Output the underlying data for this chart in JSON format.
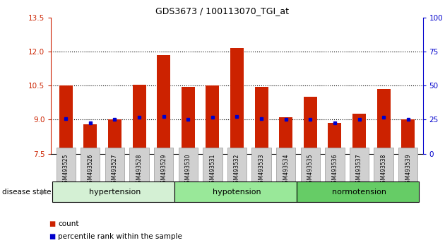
{
  "title": "GDS3673 / 100113070_TGI_at",
  "samples": [
    "GSM493525",
    "GSM493526",
    "GSM493527",
    "GSM493528",
    "GSM493529",
    "GSM493530",
    "GSM493531",
    "GSM493532",
    "GSM493533",
    "GSM493534",
    "GSM493535",
    "GSM493536",
    "GSM493537",
    "GSM493538",
    "GSM493539"
  ],
  "count_values": [
    10.5,
    8.8,
    9.0,
    10.55,
    11.85,
    10.45,
    10.52,
    12.15,
    10.45,
    9.1,
    10.0,
    8.85,
    9.25,
    10.35,
    9.0
  ],
  "percentile_values": [
    9.05,
    8.85,
    9.0,
    9.1,
    9.15,
    9.0,
    9.12,
    9.15,
    9.05,
    9.0,
    9.0,
    8.85,
    9.0,
    9.1,
    9.0
  ],
  "bar_base": 7.5,
  "ylim_left": [
    7.5,
    13.5
  ],
  "ylim_right": [
    0,
    100
  ],
  "yticks_left": [
    7.5,
    9.0,
    10.5,
    12.0,
    13.5
  ],
  "yticks_right": [
    0,
    25,
    50,
    75,
    100
  ],
  "dotted_lines": [
    9.0,
    10.5,
    12.0
  ],
  "groups": [
    {
      "label": "hypertension",
      "start": 0,
      "end": 5
    },
    {
      "label": "hypotension",
      "start": 5,
      "end": 10
    },
    {
      "label": "normotension",
      "start": 10,
      "end": 15
    }
  ],
  "group_colors": [
    "#d4f0d4",
    "#99e899",
    "#66cc66"
  ],
  "bar_color": "#cc2200",
  "blue_color": "#0000cc",
  "label_bg": "#d0d0d0",
  "label_edge": "#999999",
  "group_label": "disease state",
  "legend_count_label": "count",
  "legend_pct_label": "percentile rank within the sample",
  "bar_width": 0.55,
  "left_color": "#cc2200",
  "right_color": "#0000cc"
}
